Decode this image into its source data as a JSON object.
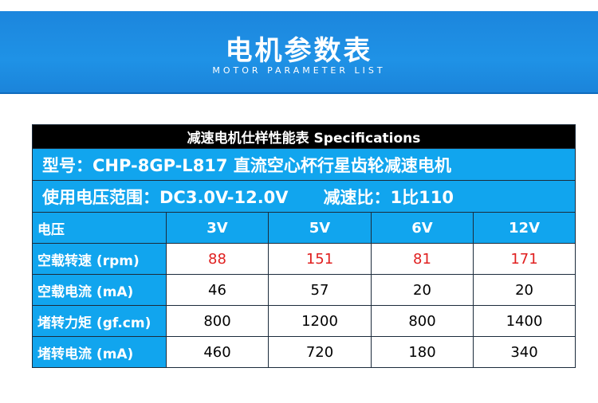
{
  "header": {
    "title": "电机参数表",
    "subtitle": "MOTOR PARAMETER LIST"
  },
  "table": {
    "caption": "减速电机仕样性能表 Specifications",
    "model": "型号：CHP-8GP-L817  直流空心杯行星齿轮减速电机",
    "voltage": "使用电压范围：DC3.0V-12.0V",
    "ratio": "减速比：1比110",
    "columns": [
      "电压",
      "3V",
      "5V",
      "6V",
      "12V"
    ],
    "rows": [
      [
        "空载转速 (rpm)",
        88,
        151,
        81,
        171
      ],
      [
        "空载电流 (mA)",
        46,
        57,
        20,
        20
      ],
      [
        "堵转力矩 (gf.cm)",
        800,
        1200,
        800,
        1400
      ],
      [
        "堵转电流 (mA)",
        460,
        720,
        180,
        340
      ]
    ]
  }
}
